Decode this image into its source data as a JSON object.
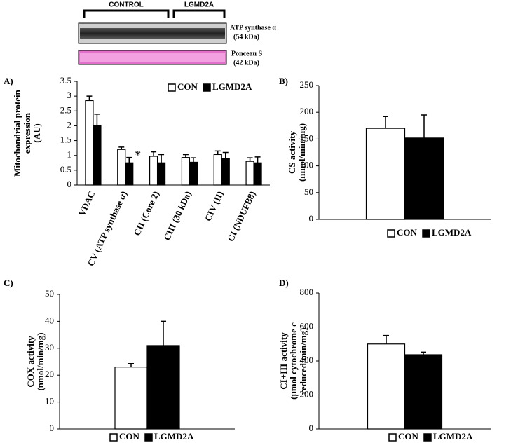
{
  "blot": {
    "groups": [
      "CONTROL",
      "LGMD2A"
    ],
    "band1": [
      "ATP synthase α",
      "(54 kDa)"
    ],
    "band2": [
      "Ponceau S",
      "(42 kDa)"
    ]
  },
  "chart_data": [
    {
      "type": "bar",
      "label": "A)",
      "ylabel": [
        "Mitochondrial protein",
        "expression",
        "(AU)"
      ],
      "categories": [
        "VDAC",
        "CV (ATP synthase α)",
        "CII (Core 2)",
        "CIII (30 kDa)",
        "CIV (II)",
        "CI (NDUFB8)"
      ],
      "series": [
        {
          "name": "CON",
          "color": "#ffffff",
          "values": [
            2.85,
            1.2,
            0.97,
            0.93,
            1.03,
            0.8
          ],
          "errors": [
            0.15,
            0.08,
            0.15,
            0.1,
            0.12,
            0.12
          ]
        },
        {
          "name": "LGMD2A",
          "color": "#000000",
          "values": [
            2.02,
            0.75,
            0.75,
            0.77,
            0.9,
            0.75
          ],
          "errors": [
            0.37,
            0.18,
            0.28,
            0.15,
            0.2,
            0.2
          ]
        }
      ],
      "annotation": "*",
      "ylim": [
        0,
        3.5
      ],
      "yticks": [
        0,
        0.5,
        1,
        1.5,
        2,
        2.5,
        3,
        3.5
      ],
      "legend": "top-right"
    },
    {
      "type": "bar",
      "label": "B)",
      "ylabel": [
        "CS activity",
        "(nmol/min/mg)"
      ],
      "categories": [
        null
      ],
      "series": [
        {
          "name": "CON",
          "color": "#ffffff",
          "values": [
            170
          ],
          "errors": [
            22
          ]
        },
        {
          "name": "LGMD2A",
          "color": "#000000",
          "values": [
            152
          ],
          "errors": [
            43
          ]
        }
      ],
      "ylim": [
        0,
        250
      ],
      "yticks": [
        0,
        50,
        100,
        150,
        200,
        250
      ],
      "legend": "bottom"
    },
    {
      "type": "bar",
      "label": "C)",
      "ylabel": [
        "COX activity",
        "(nmol/min/mg)"
      ],
      "categories": [
        null
      ],
      "series": [
        {
          "name": "CON",
          "color": "#ffffff",
          "values": [
            23
          ],
          "errors": [
            1.3
          ]
        },
        {
          "name": "LGMD2A",
          "color": "#000000",
          "values": [
            31
          ],
          "errors": [
            9
          ]
        }
      ],
      "ylim": [
        0,
        50
      ],
      "yticks": [
        0,
        10,
        20,
        30,
        40,
        50
      ],
      "legend": "bottom"
    },
    {
      "type": "bar",
      "label": "D)",
      "ylabel": [
        "CI+III activity",
        "(µmol cytochrome c",
        "reduced/min/mg)"
      ],
      "categories": [
        null
      ],
      "series": [
        {
          "name": "CON",
          "color": "#ffffff",
          "values": [
            500
          ],
          "errors": [
            50
          ]
        },
        {
          "name": "LGMD2A",
          "color": "#000000",
          "values": [
            437
          ],
          "errors": [
            15
          ]
        }
      ],
      "ylim": [
        0,
        800
      ],
      "yticks": [
        0,
        200,
        400,
        600,
        800
      ],
      "legend": "bottom"
    }
  ]
}
